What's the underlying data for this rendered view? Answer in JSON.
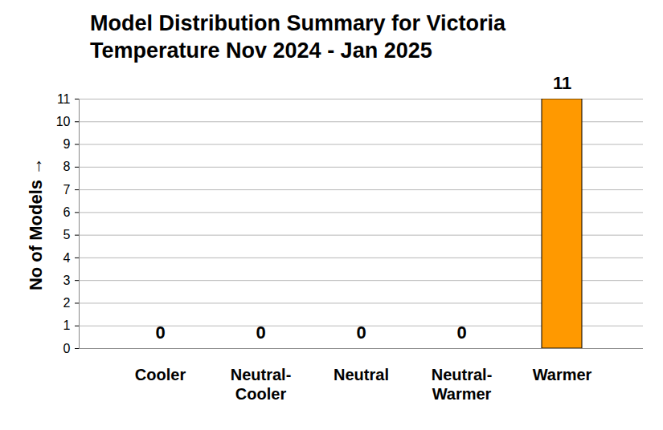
{
  "chart_data": {
    "type": "bar",
    "title": "Model Distribution Summary for Victoria Temperature Nov 2024 - Jan 2025",
    "y_label": "No of Models",
    "categories": [
      "Cooler",
      "Neutral-Cooler",
      "Neutral",
      "Neutral-Warmer",
      "Warmer"
    ],
    "values": [
      0,
      0,
      0,
      0,
      11
    ],
    "color": "#FF9900",
    "ylim": [
      0,
      11
    ],
    "yticks": [
      0,
      1,
      2,
      3,
      4,
      5,
      6,
      7,
      8,
      9,
      10,
      11
    ],
    "grid": true,
    "data_labels": true
  }
}
